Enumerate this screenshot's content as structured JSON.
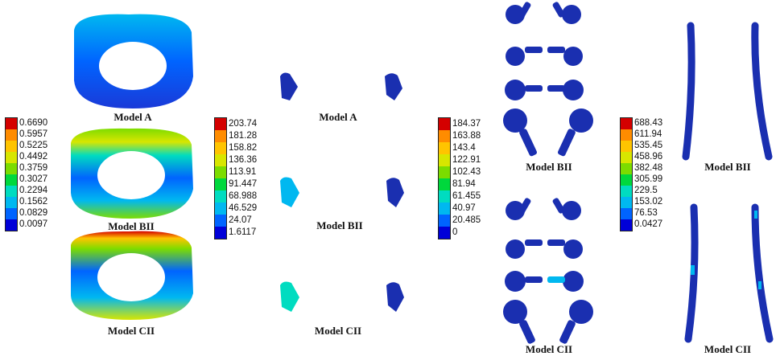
{
  "colors": {
    "scale": [
      "#d40000",
      "#ff8c00",
      "#ffc400",
      "#d8e600",
      "#7cdc00",
      "#00d83c",
      "#00dcc0",
      "#00b8f0",
      "#0064ff",
      "#0000d8"
    ],
    "dark_blue": "#1a2fb0"
  },
  "legends": [
    {
      "name": "legend-annulus",
      "ticks": [
        "0.6690",
        "0.5957",
        "0.5225",
        "0.4492",
        "0.3759",
        "0.3027",
        "0.2294",
        "0.1562",
        "0.0829",
        "0.0097"
      ]
    },
    {
      "name": "legend-facet",
      "ticks": [
        "203.74",
        "181.28",
        "158.82",
        "136.36",
        "113.91",
        "91.447",
        "68.988",
        "46.529",
        "24.07",
        "1.6117"
      ]
    },
    {
      "name": "legend-screw",
      "ticks": [
        "184.37",
        "163.88",
        "143.4",
        "122.91",
        "102.43",
        "81.94",
        "61.455",
        "40.97",
        "20.485",
        "0"
      ]
    },
    {
      "name": "legend-rod",
      "ticks": [
        "688.43",
        "611.94",
        "535.45",
        "458.96",
        "382.48",
        "305.99",
        "229.5",
        "153.02",
        "76.53",
        "0.0427"
      ]
    }
  ],
  "labels": {
    "annulus": [
      "Model A",
      "Model BII",
      "Model CII"
    ],
    "facet": [
      "Model A",
      "Model BII",
      "Model CII"
    ],
    "screw": [
      "Model BII",
      "Model CII"
    ],
    "rod": [
      "Model BII",
      "Model CII"
    ]
  }
}
